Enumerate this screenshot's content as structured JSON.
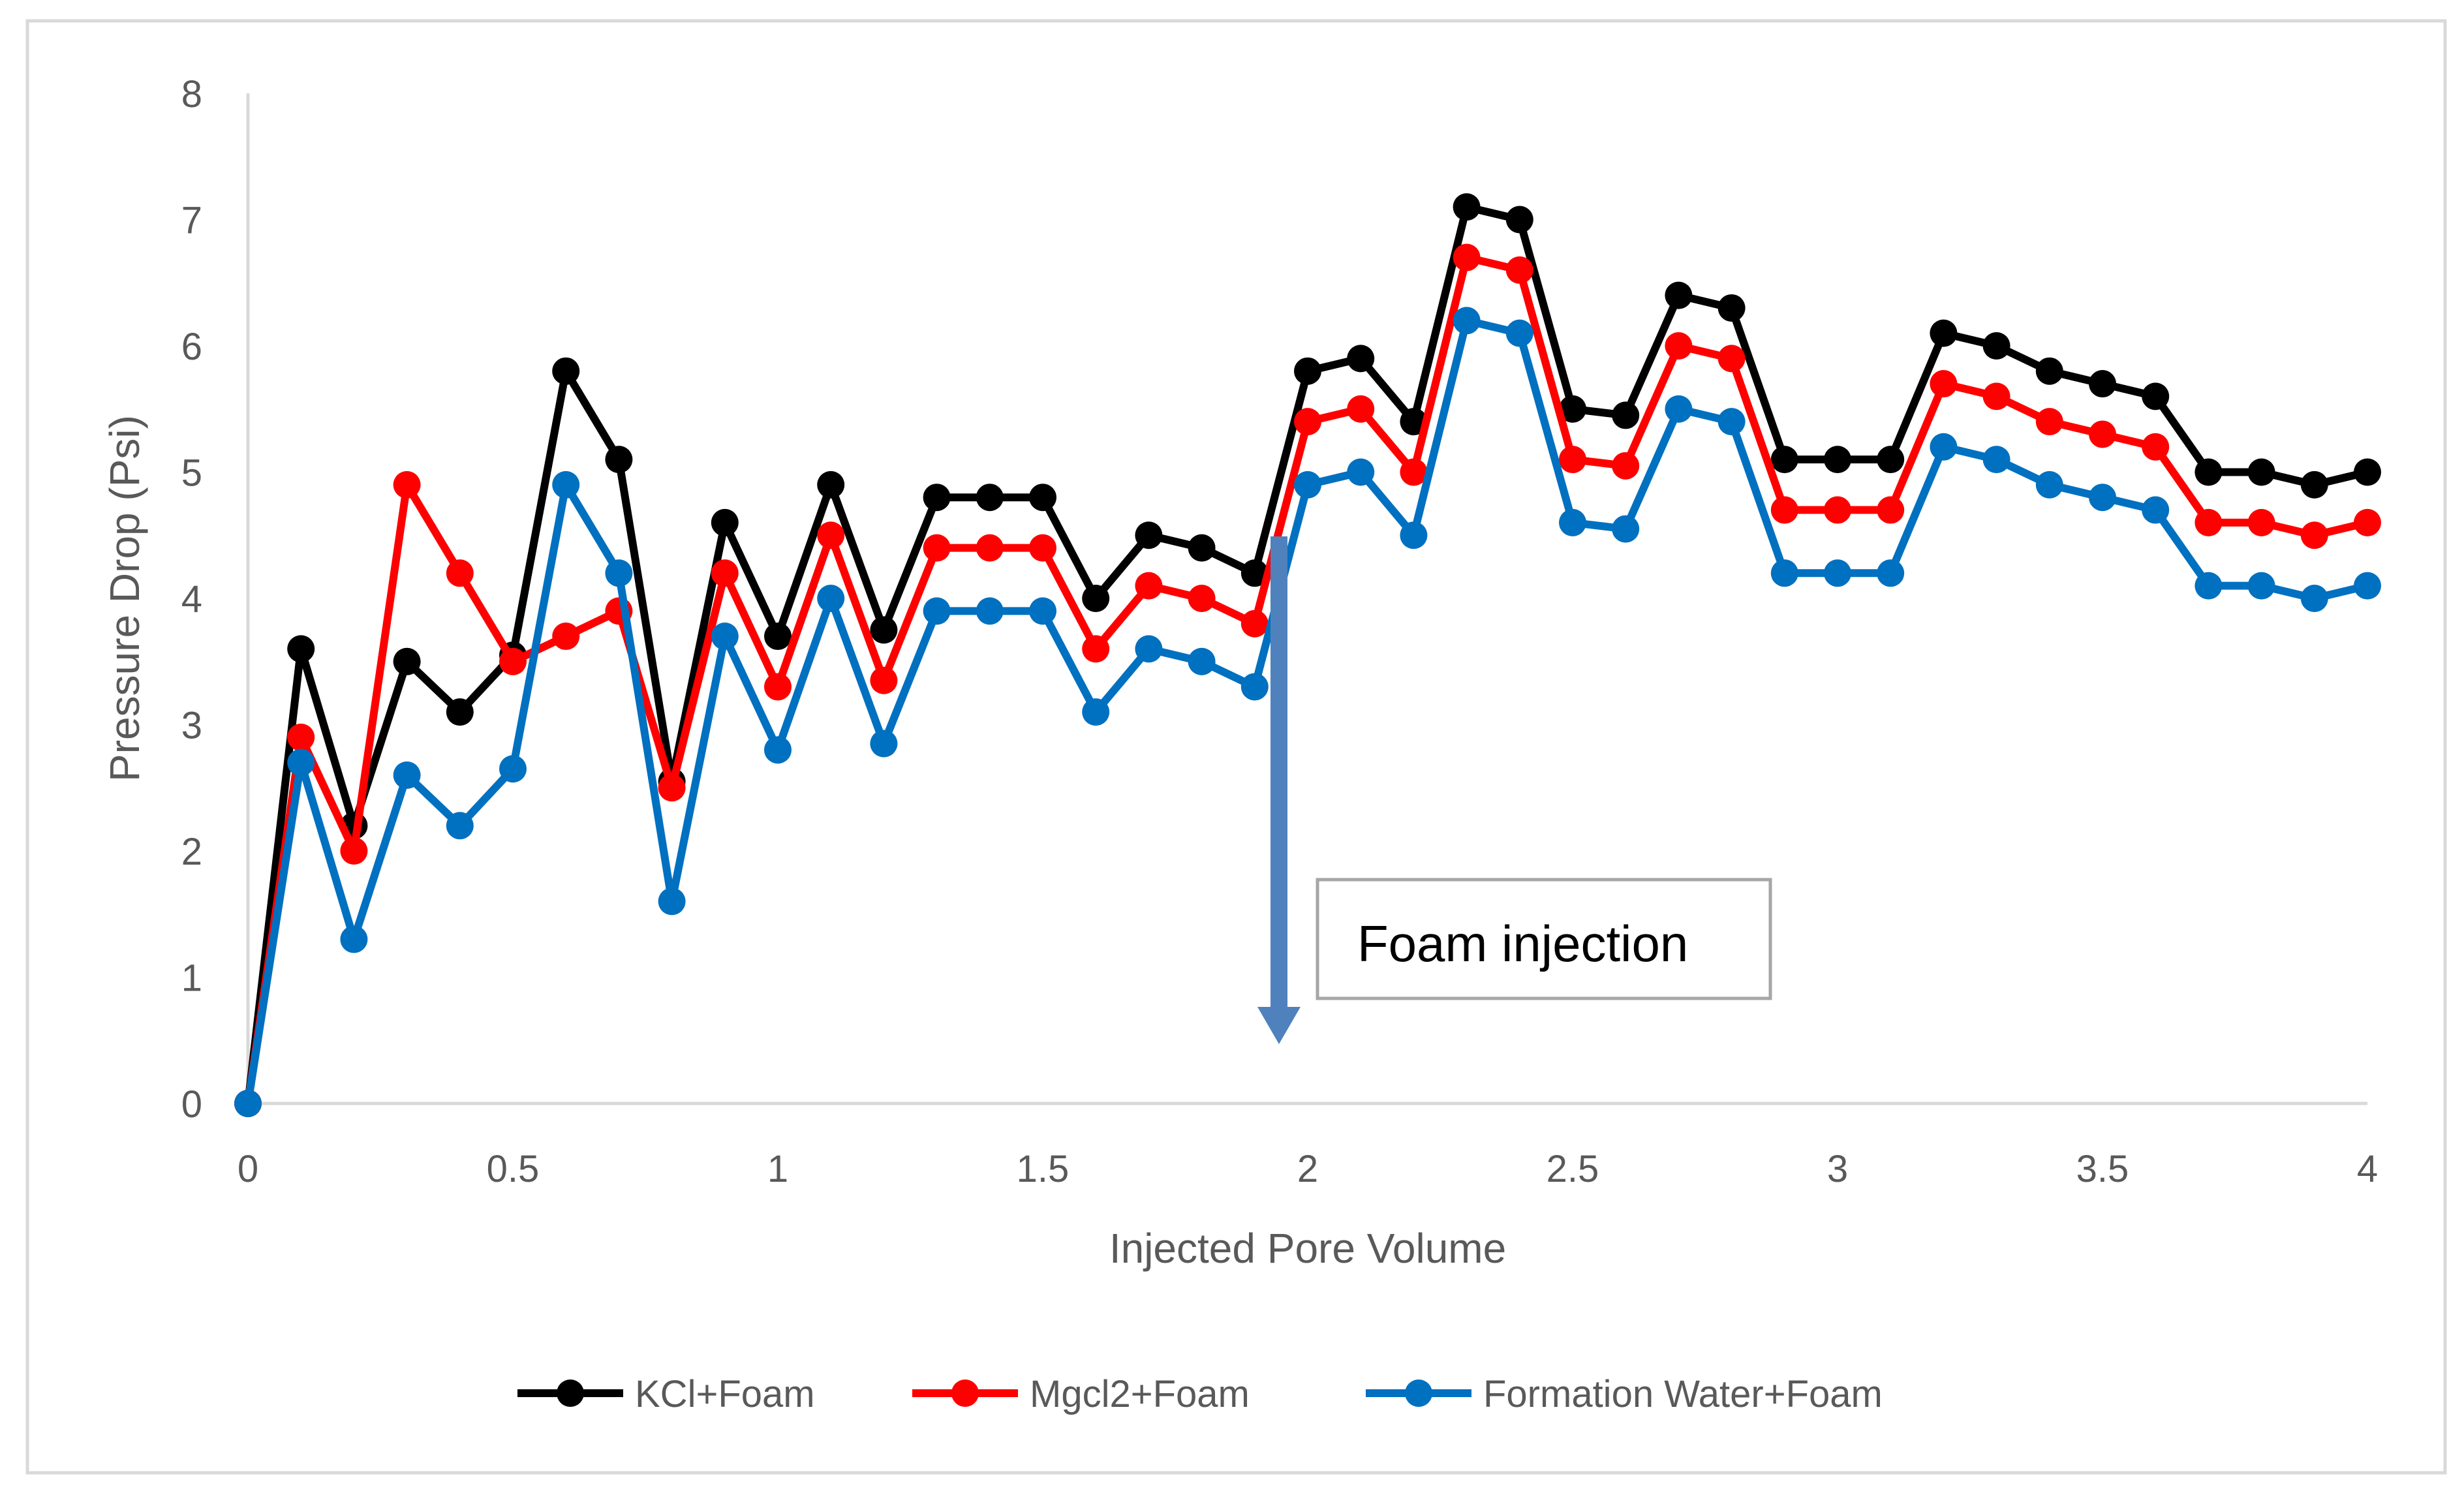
{
  "chart_data": {
    "type": "line",
    "title": "",
    "xlabel": "Injected Pore Volume",
    "ylabel": "Pressure Drop (Psi)",
    "xlim": [
      0,
      4
    ],
    "ylim": [
      0,
      8
    ],
    "x_ticks": [
      "0",
      "0.5",
      "1",
      "1.5",
      "2",
      "2.5",
      "3",
      "3.5",
      "4"
    ],
    "y_ticks": [
      "0",
      "1",
      "2",
      "3",
      "4",
      "5",
      "6",
      "7",
      "8"
    ],
    "grid": false,
    "legend_position": "bottom",
    "x": [
      0,
      0.1,
      0.2,
      0.3,
      0.4,
      0.5,
      0.6,
      0.7,
      0.8,
      0.9,
      1.0,
      1.1,
      1.2,
      1.3,
      1.4,
      1.5,
      1.6,
      1.7,
      1.8,
      1.9,
      2.0,
      2.1,
      2.2,
      2.3,
      2.4,
      2.5,
      2.6,
      2.7,
      2.8,
      2.9,
      3.0,
      3.1,
      3.2,
      3.3,
      3.4,
      3.5,
      3.6,
      3.7,
      3.8,
      3.9,
      4.0
    ],
    "series": [
      {
        "name": "KCl+Foam",
        "color": "#000000",
        "values": [
          0,
          3.6,
          2.2,
          3.5,
          3.1,
          3.55,
          5.8,
          5.1,
          2.55,
          4.6,
          3.7,
          4.9,
          3.75,
          4.8,
          4.8,
          4.8,
          4.0,
          4.5,
          4.4,
          4.2,
          5.8,
          5.9,
          5.4,
          7.1,
          7.0,
          5.5,
          5.45,
          6.4,
          6.3,
          5.1,
          5.1,
          5.1,
          6.1,
          6.0,
          5.8,
          5.7,
          5.6,
          5.0,
          5.0,
          4.9,
          5.0
        ]
      },
      {
        "name": "Mgcl2+Foam",
        "color": "#ff0000",
        "values": [
          0,
          2.9,
          2.0,
          4.9,
          4.2,
          3.5,
          3.7,
          3.9,
          2.5,
          4.2,
          3.3,
          4.5,
          3.35,
          4.4,
          4.4,
          4.4,
          3.6,
          4.1,
          4.0,
          3.8,
          5.4,
          5.5,
          5.0,
          6.7,
          6.6,
          5.1,
          5.05,
          6.0,
          5.9,
          4.7,
          4.7,
          4.7,
          5.7,
          5.6,
          5.4,
          5.3,
          5.2,
          4.6,
          4.6,
          4.5,
          4.6
        ]
      },
      {
        "name": "Formation Water+Foam",
        "color": "#0070c0",
        "values": [
          0,
          2.7,
          1.3,
          2.6,
          2.2,
          2.65,
          4.9,
          4.2,
          1.6,
          3.7,
          2.8,
          4.0,
          2.85,
          3.9,
          3.9,
          3.9,
          3.1,
          3.6,
          3.5,
          3.3,
          4.9,
          5.0,
          4.5,
          6.2,
          6.1,
          4.6,
          4.55,
          5.5,
          5.4,
          4.2,
          4.2,
          4.2,
          5.2,
          5.1,
          4.9,
          4.8,
          4.7,
          4.1,
          4.1,
          4.0,
          4.1
        ]
      }
    ],
    "annotations": [
      {
        "text": "Foam injection",
        "arrow_x": 1.95,
        "arrow_from_y": 4.5,
        "arrow_to_y": 0.5,
        "arrow_color": "#4f81bd"
      }
    ]
  }
}
